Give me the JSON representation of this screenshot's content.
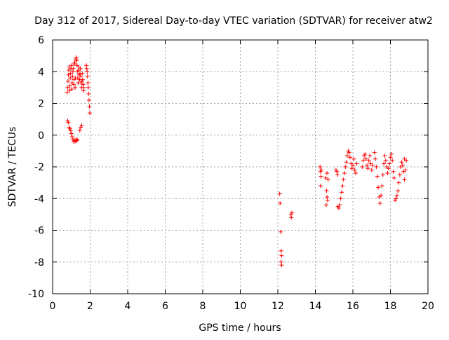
{
  "chart_data": {
    "type": "scatter",
    "title": "Day 312 of 2017, Sidereal Day-to-day VTEC variation (SDTVAR) for receiver atw2",
    "xlabel": "GPS time / hours",
    "ylabel": "SDTVAR / TECUs",
    "xlim": [
      0,
      20
    ],
    "ylim": [
      -10,
      6
    ],
    "x_ticks": [
      0,
      2,
      4,
      6,
      8,
      10,
      12,
      14,
      16,
      18,
      20
    ],
    "y_ticks": [
      -10,
      -8,
      -6,
      -4,
      -2,
      0,
      2,
      4,
      6
    ],
    "x_tick_labels": [
      "0",
      "2",
      "4",
      "6",
      "8",
      "10",
      "12",
      "14",
      "16",
      "18",
      "20"
    ],
    "y_tick_labels": [
      "-10",
      "-8",
      "-6",
      "-4",
      "-2",
      "0",
      "2",
      "4",
      "6"
    ],
    "grid": true,
    "marker": "+",
    "marker_color": "#ff0000",
    "series": [
      {
        "name": "SDTVAR",
        "points": [
          [
            0.78,
            2.7
          ],
          [
            0.8,
            3.0
          ],
          [
            0.82,
            3.4
          ],
          [
            0.84,
            3.8
          ],
          [
            0.86,
            4.1
          ],
          [
            0.88,
            4.3
          ],
          [
            0.9,
            2.8
          ],
          [
            0.92,
            3.1
          ],
          [
            0.94,
            3.6
          ],
          [
            0.96,
            3.9
          ],
          [
            0.98,
            4.2
          ],
          [
            1.0,
            4.4
          ],
          [
            1.02,
            2.9
          ],
          [
            1.04,
            3.3
          ],
          [
            1.06,
            3.7
          ],
          [
            1.08,
            4.0
          ],
          [
            1.1,
            4.2
          ],
          [
            1.12,
            3.2
          ],
          [
            1.14,
            3.5
          ],
          [
            1.16,
            4.5
          ],
          [
            1.18,
            4.6
          ],
          [
            1.2,
            3.0
          ],
          [
            1.22,
            3.6
          ],
          [
            1.24,
            4.8
          ],
          [
            1.26,
            4.9
          ],
          [
            1.28,
            4.7
          ],
          [
            1.3,
            4.4
          ],
          [
            1.32,
            4.0
          ],
          [
            1.34,
            3.6
          ],
          [
            1.36,
            3.3
          ],
          [
            1.38,
            4.1
          ],
          [
            1.4,
            4.3
          ],
          [
            1.42,
            3.8
          ],
          [
            1.44,
            3.5
          ],
          [
            1.46,
            3.9
          ],
          [
            1.48,
            4.2
          ],
          [
            1.5,
            3.7
          ],
          [
            1.52,
            3.3
          ],
          [
            1.54,
            3.0
          ],
          [
            1.56,
            3.4
          ],
          [
            1.58,
            3.9
          ],
          [
            1.6,
            3.5
          ],
          [
            1.62,
            3.2
          ],
          [
            1.64,
            2.8
          ],
          [
            1.66,
            3.0
          ],
          [
            1.8,
            4.4
          ],
          [
            1.82,
            4.2
          ],
          [
            1.84,
            4.0
          ],
          [
            1.86,
            3.7
          ],
          [
            1.88,
            3.3
          ],
          [
            1.9,
            3.0
          ],
          [
            1.92,
            2.6
          ],
          [
            1.94,
            2.2
          ],
          [
            1.96,
            1.8
          ],
          [
            1.98,
            1.4
          ],
          [
            0.8,
            0.9
          ],
          [
            0.84,
            0.8
          ],
          [
            0.88,
            0.5
          ],
          [
            0.92,
            0.4
          ],
          [
            0.96,
            0.3
          ],
          [
            1.0,
            0.1
          ],
          [
            1.04,
            -0.1
          ],
          [
            1.08,
            -0.3
          ],
          [
            1.12,
            -0.4
          ],
          [
            1.16,
            -0.3
          ],
          [
            1.2,
            -0.4
          ],
          [
            1.24,
            -0.3
          ],
          [
            1.28,
            -0.35
          ],
          [
            1.32,
            -0.3
          ],
          [
            1.45,
            0.3
          ],
          [
            1.5,
            0.5
          ],
          [
            1.55,
            0.6
          ],
          [
            12.1,
            -3.7
          ],
          [
            12.12,
            -4.3
          ],
          [
            12.15,
            -6.1
          ],
          [
            12.18,
            -7.3
          ],
          [
            12.2,
            -7.6
          ],
          [
            12.18,
            -8.0
          ],
          [
            12.2,
            -8.2
          ],
          [
            12.7,
            -5.0
          ],
          [
            12.72,
            -5.2
          ],
          [
            12.75,
            -4.9
          ],
          [
            14.25,
            -2.0
          ],
          [
            14.27,
            -2.3
          ],
          [
            14.3,
            -2.6
          ],
          [
            14.28,
            -3.2
          ],
          [
            14.32,
            -2.2
          ],
          [
            14.55,
            -2.7
          ],
          [
            14.6,
            -3.5
          ],
          [
            14.62,
            -3.9
          ],
          [
            14.65,
            -4.1
          ],
          [
            14.58,
            -4.4
          ],
          [
            14.62,
            -2.4
          ],
          [
            14.68,
            -2.8
          ],
          [
            15.1,
            -2.2
          ],
          [
            15.15,
            -2.3
          ],
          [
            15.18,
            -2.5
          ],
          [
            15.2,
            -4.5
          ],
          [
            15.25,
            -4.6
          ],
          [
            15.3,
            -4.4
          ],
          [
            15.35,
            -4.0
          ],
          [
            15.4,
            -3.6
          ],
          [
            15.45,
            -3.2
          ],
          [
            15.5,
            -2.8
          ],
          [
            15.55,
            -2.4
          ],
          [
            15.6,
            -2.0
          ],
          [
            15.65,
            -1.7
          ],
          [
            15.7,
            -1.3
          ],
          [
            15.75,
            -1.0
          ],
          [
            15.8,
            -1.1
          ],
          [
            15.85,
            -1.4
          ],
          [
            15.9,
            -1.8
          ],
          [
            15.95,
            -2.1
          ],
          [
            16.0,
            -1.9
          ],
          [
            16.05,
            -1.5
          ],
          [
            16.1,
            -2.2
          ],
          [
            16.15,
            -2.4
          ],
          [
            16.2,
            -1.8
          ],
          [
            16.5,
            -2.0
          ],
          [
            16.55,
            -1.6
          ],
          [
            16.6,
            -1.3
          ],
          [
            16.65,
            -1.2
          ],
          [
            16.7,
            -1.5
          ],
          [
            16.75,
            -1.9
          ],
          [
            16.8,
            -2.1
          ],
          [
            16.85,
            -1.6
          ],
          [
            16.9,
            -1.3
          ],
          [
            16.95,
            -1.8
          ],
          [
            17.0,
            -2.2
          ],
          [
            17.05,
            -1.9
          ],
          [
            17.15,
            -1.1
          ],
          [
            17.2,
            -1.5
          ],
          [
            17.25,
            -2.0
          ],
          [
            17.3,
            -2.6
          ],
          [
            17.35,
            -3.3
          ],
          [
            17.4,
            -3.9
          ],
          [
            17.45,
            -4.3
          ],
          [
            17.5,
            -3.8
          ],
          [
            17.55,
            -3.2
          ],
          [
            17.6,
            -2.5
          ],
          [
            17.65,
            -1.8
          ],
          [
            17.7,
            -1.3
          ],
          [
            17.75,
            -1.6
          ],
          [
            17.8,
            -2.0
          ],
          [
            17.85,
            -2.4
          ],
          [
            17.9,
            -2.1
          ],
          [
            17.95,
            -1.8
          ],
          [
            18.0,
            -1.4
          ],
          [
            18.05,
            -1.2
          ],
          [
            18.1,
            -1.6
          ],
          [
            18.15,
            -2.3
          ],
          [
            18.2,
            -2.7
          ],
          [
            18.25,
            -4.1
          ],
          [
            18.3,
            -4.0
          ],
          [
            18.35,
            -3.8
          ],
          [
            18.4,
            -3.5
          ],
          [
            18.45,
            -3.0
          ],
          [
            18.5,
            -2.5
          ],
          [
            18.55,
            -2.0
          ],
          [
            18.6,
            -1.7
          ],
          [
            18.65,
            -1.9
          ],
          [
            18.7,
            -2.3
          ],
          [
            18.75,
            -2.8
          ],
          [
            18.8,
            -2.2
          ],
          [
            18.85,
            -1.6
          ],
          [
            18.75,
            -1.5
          ]
        ]
      }
    ]
  }
}
